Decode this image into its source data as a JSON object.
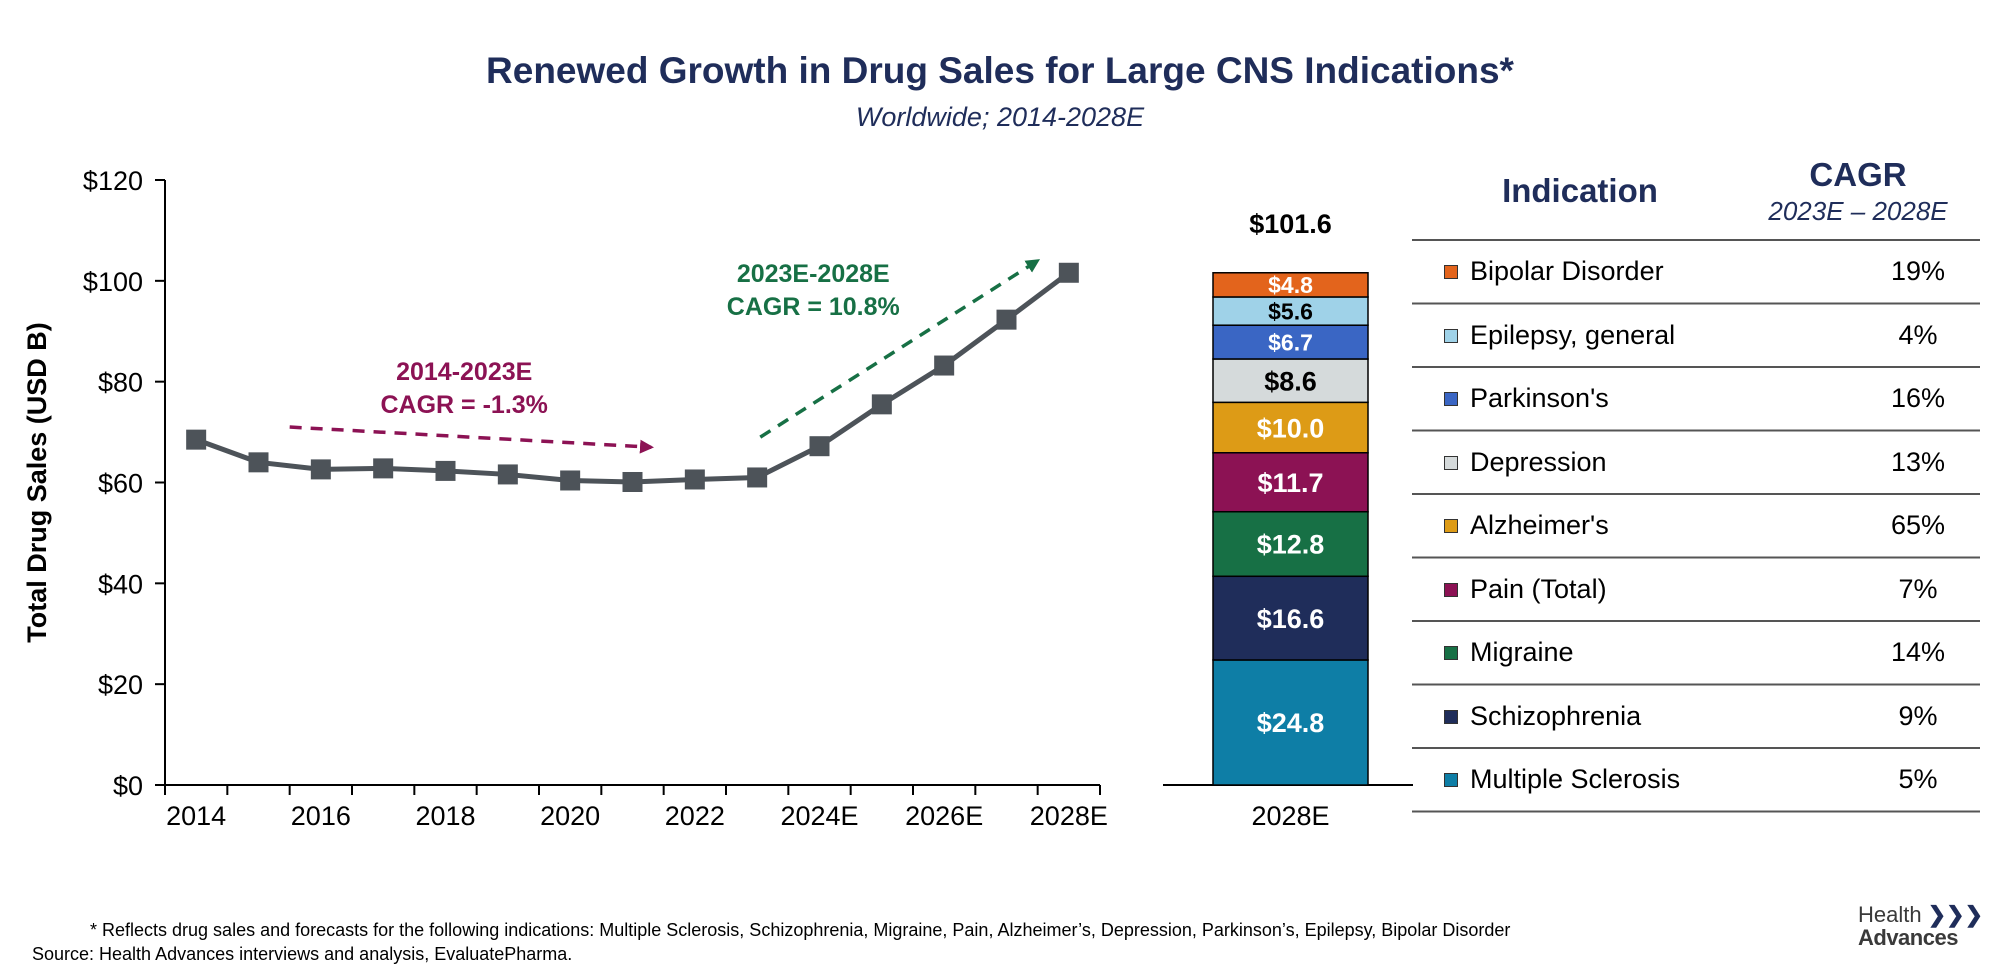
{
  "title": "Renewed Growth in Drug Sales for Large CNS Indications*",
  "subtitle": "Worldwide; 2014-2028E",
  "chart_data": [
    {
      "type": "line",
      "ylabel": "Total Drug Sales (USD B)",
      "ylim": [
        0,
        120
      ],
      "yticks": [
        "$0",
        "$20",
        "$40",
        "$60",
        "$80",
        "$100",
        "$120"
      ],
      "x": [
        "2014",
        "2015",
        "2016",
        "2017",
        "2018",
        "2019",
        "2020",
        "2021",
        "2022",
        "2023E",
        "2024E",
        "2025E",
        "2026E",
        "2027E",
        "2028E"
      ],
      "xtick_labels": [
        "2014",
        "2016",
        "2018",
        "2020",
        "2022",
        "2024E",
        "2026E",
        "2028E"
      ],
      "values": [
        68.5,
        64.0,
        62.6,
        62.8,
        62.3,
        61.6,
        60.4,
        60.1,
        60.6,
        61.0,
        67.2,
        75.5,
        83.2,
        92.3,
        101.6
      ],
      "series_color": "#4d5359",
      "annotations": [
        {
          "line1": "2014-2023E",
          "line2": "CAGR = -1.3%",
          "color": "#8c1254"
        },
        {
          "line1": "2023E-2028E",
          "line2": "CAGR = 10.8%",
          "color": "#177045"
        }
      ],
      "grid": false
    },
    {
      "type": "bar",
      "stacked": true,
      "category": "2028E",
      "total_label": "$101.6",
      "segments": [
        {
          "name": "Multiple Sclerosis",
          "value": 24.8,
          "label": "$24.8",
          "color": "#0e7ea6",
          "text_color": "#ffffff"
        },
        {
          "name": "Schizophrenia",
          "value": 16.6,
          "label": "$16.6",
          "color": "#1f2d5a",
          "text_color": "#ffffff"
        },
        {
          "name": "Migraine",
          "value": 12.8,
          "label": "$12.8",
          "color": "#177045",
          "text_color": "#ffffff"
        },
        {
          "name": "Pain (Total)",
          "value": 11.7,
          "label": "$11.7",
          "color": "#8c1254",
          "text_color": "#ffffff"
        },
        {
          "name": "Alzheimer's",
          "value": 10.0,
          "label": "$10.0",
          "color": "#dd9b16",
          "text_color": "#ffffff"
        },
        {
          "name": "Depression",
          "value": 8.6,
          "label": "$8.6",
          "color": "#d5dadb",
          "text_color": "#000000"
        },
        {
          "name": "Parkinson's",
          "value": 6.7,
          "label": "$6.7",
          "color": "#3a66c4",
          "text_color": "#ffffff"
        },
        {
          "name": "Epilepsy, general",
          "value": 5.6,
          "label": "$5.6",
          "color": "#9fd2e8",
          "text_color": "#000000"
        },
        {
          "name": "Bipolar Disorder",
          "value": 4.8,
          "label": "$4.8",
          "color": "#e3641c",
          "text_color": "#ffffff"
        }
      ]
    }
  ],
  "table": {
    "col1_header": "Indication",
    "col2_header": "CAGR",
    "col2_subheader": "2023E – 2028E",
    "rows": [
      {
        "label": "Bipolar Disorder",
        "value": "19%",
        "color": "#e3641c"
      },
      {
        "label": "Epilepsy, general",
        "value": "4%",
        "color": "#9fd2e8"
      },
      {
        "label": "Parkinson's",
        "value": "16%",
        "color": "#3a66c4"
      },
      {
        "label": "Depression",
        "value": "13%",
        "color": "#d5dadb"
      },
      {
        "label": "Alzheimer's",
        "value": "65%",
        "color": "#dd9b16"
      },
      {
        "label": "Pain (Total)",
        "value": "7%",
        "color": "#8c1254"
      },
      {
        "label": "Migraine",
        "value": "14%",
        "color": "#177045"
      },
      {
        "label": "Schizophrenia",
        "value": "9%",
        "color": "#1f2d5a"
      },
      {
        "label": "Multiple Sclerosis",
        "value": "5%",
        "color": "#0e7ea6"
      }
    ]
  },
  "footnote": "*  Reflects drug sales and forecasts for the following indications: Multiple Sclerosis, Schizophrenia, Migraine, Pain, Alzheimer’s, Depression, Parkinson’s, Epilepsy, Bipolar Disorder",
  "source": "Source:  Health Advances interviews and analysis, EvaluatePharma.",
  "logo": {
    "line1": "Health",
    "line2": "Advances",
    "icon": "triple-chevron-icon"
  }
}
